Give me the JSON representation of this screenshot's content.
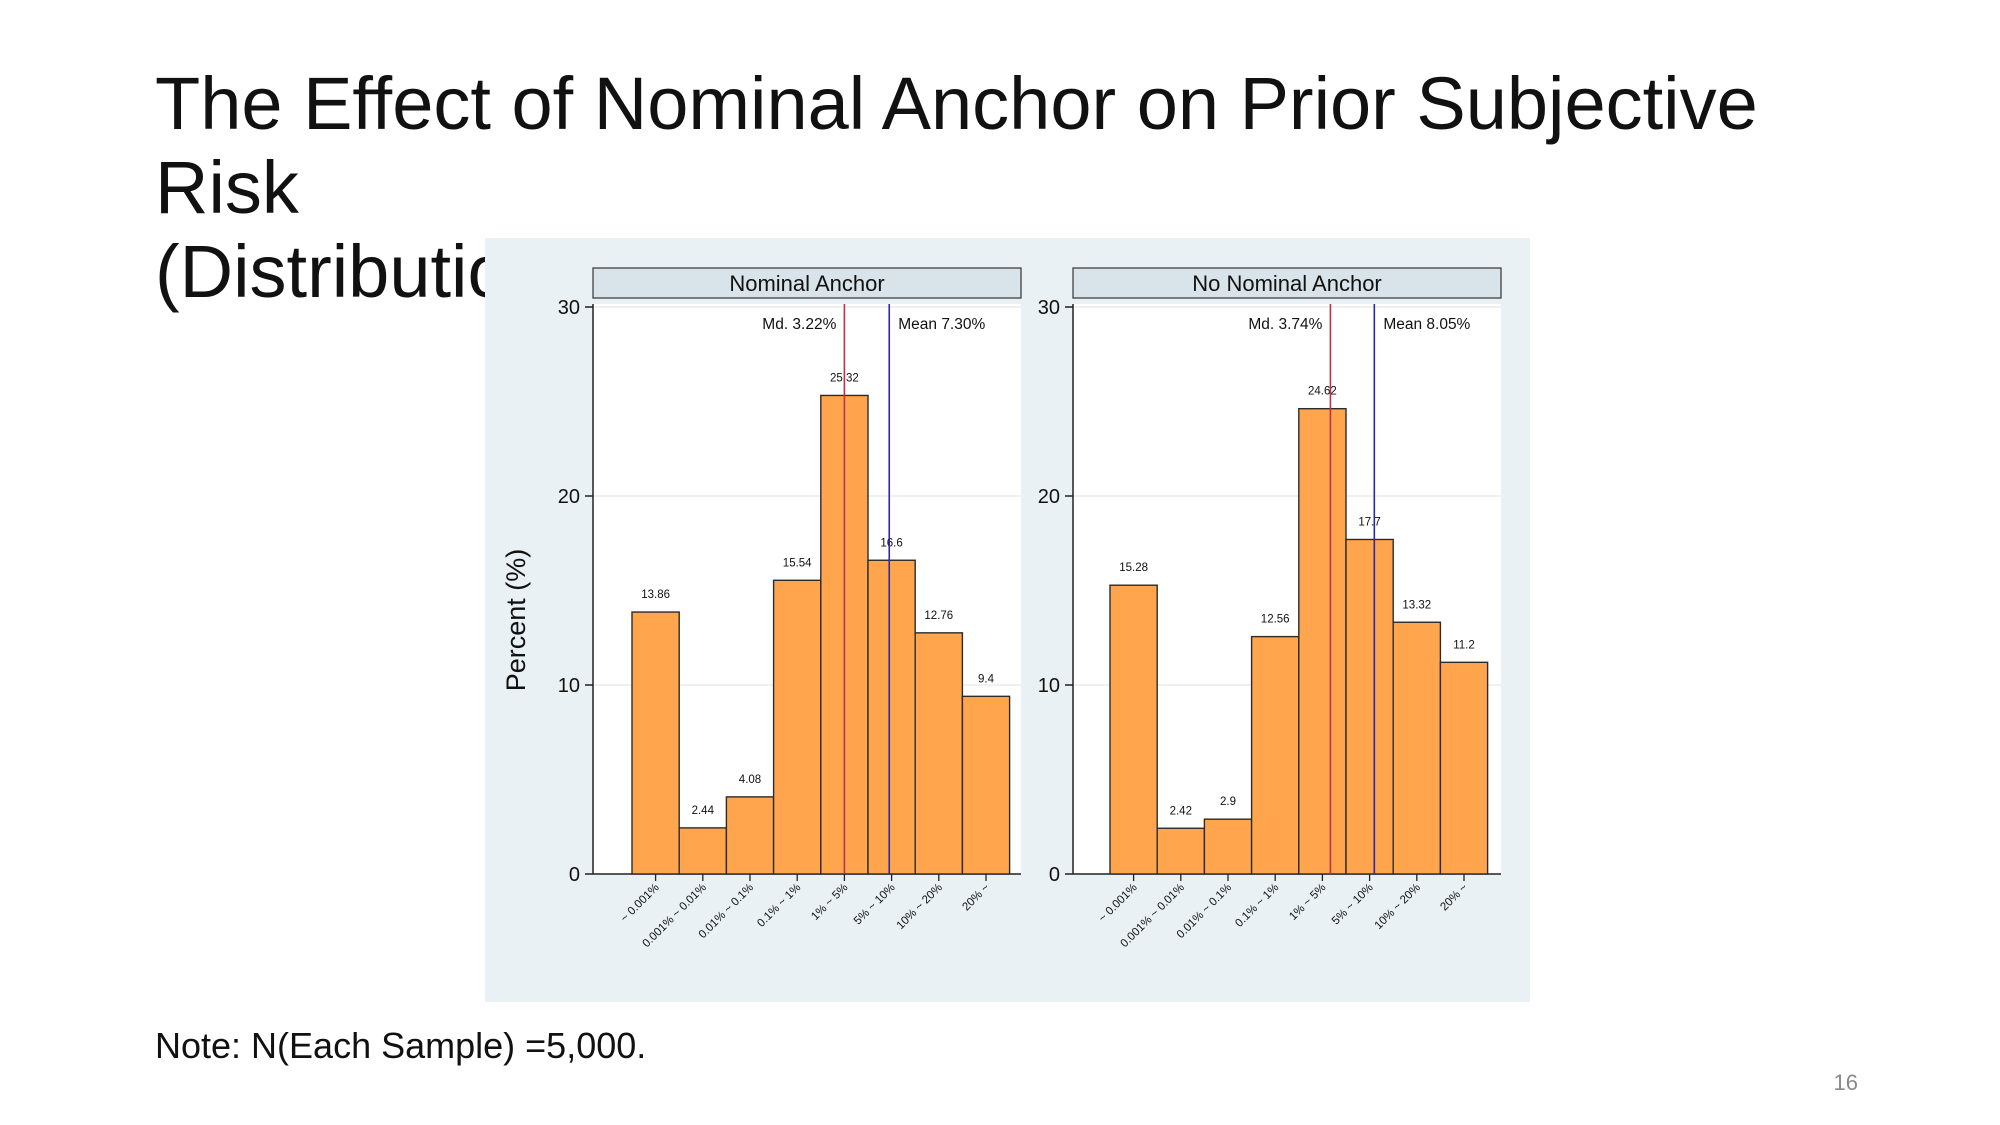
{
  "slide": {
    "title_line1": "The Effect of Nominal Anchor on Prior Subjective Risk",
    "title_line2": "(Distribution)",
    "note": "Note: N(Each Sample) =5,000.",
    "page_number": "16"
  },
  "colors": {
    "figure_background": "#eaf1f4",
    "plot_background": "#ffffff",
    "panel_header": "#d9e4ea",
    "bar_fill": "#ffa54d",
    "bar_stroke": "#2b2b2b",
    "median_line": "#c0304a",
    "mean_line": "#2a2aa8"
  },
  "chart_data": {
    "type": "bar",
    "ylabel": "Percent (%)",
    "ylim": [
      0,
      30
    ],
    "yticks": [
      0,
      10,
      20,
      30
    ],
    "grid": true,
    "categories": [
      "~ 0.001%",
      "0.001% ~ 0.01%",
      "0.01% ~ 0.1%",
      "0.1% ~ 1%",
      "1% ~ 5%",
      "5% ~ 10%",
      "10% ~ 20%",
      "20% ~"
    ],
    "panels": [
      {
        "title": "Nominal Anchor",
        "values": [
          13.86,
          2.44,
          4.08,
          15.54,
          25.32,
          16.6,
          12.76,
          9.4
        ],
        "value_labels": [
          "13.86",
          "2.44",
          "4.08",
          "15.54",
          "25.32",
          "16.6",
          "12.76",
          "9.4"
        ],
        "median_label": "Md. 3.22%",
        "median_position_bin": 4.5,
        "mean_label": "Mean 7.30%",
        "mean_position_bin": 5.45
      },
      {
        "title": "No Nominal Anchor",
        "values": [
          15.28,
          2.42,
          2.9,
          12.56,
          24.62,
          17.7,
          13.32,
          11.2
        ],
        "value_labels": [
          "15.28",
          "2.42",
          "2.9",
          "12.56",
          "24.62",
          "17.7",
          "13.32",
          "11.2"
        ],
        "median_label": "Md. 3.74%",
        "median_position_bin": 4.67,
        "mean_label": "Mean 8.05%",
        "mean_position_bin": 5.6
      }
    ]
  }
}
